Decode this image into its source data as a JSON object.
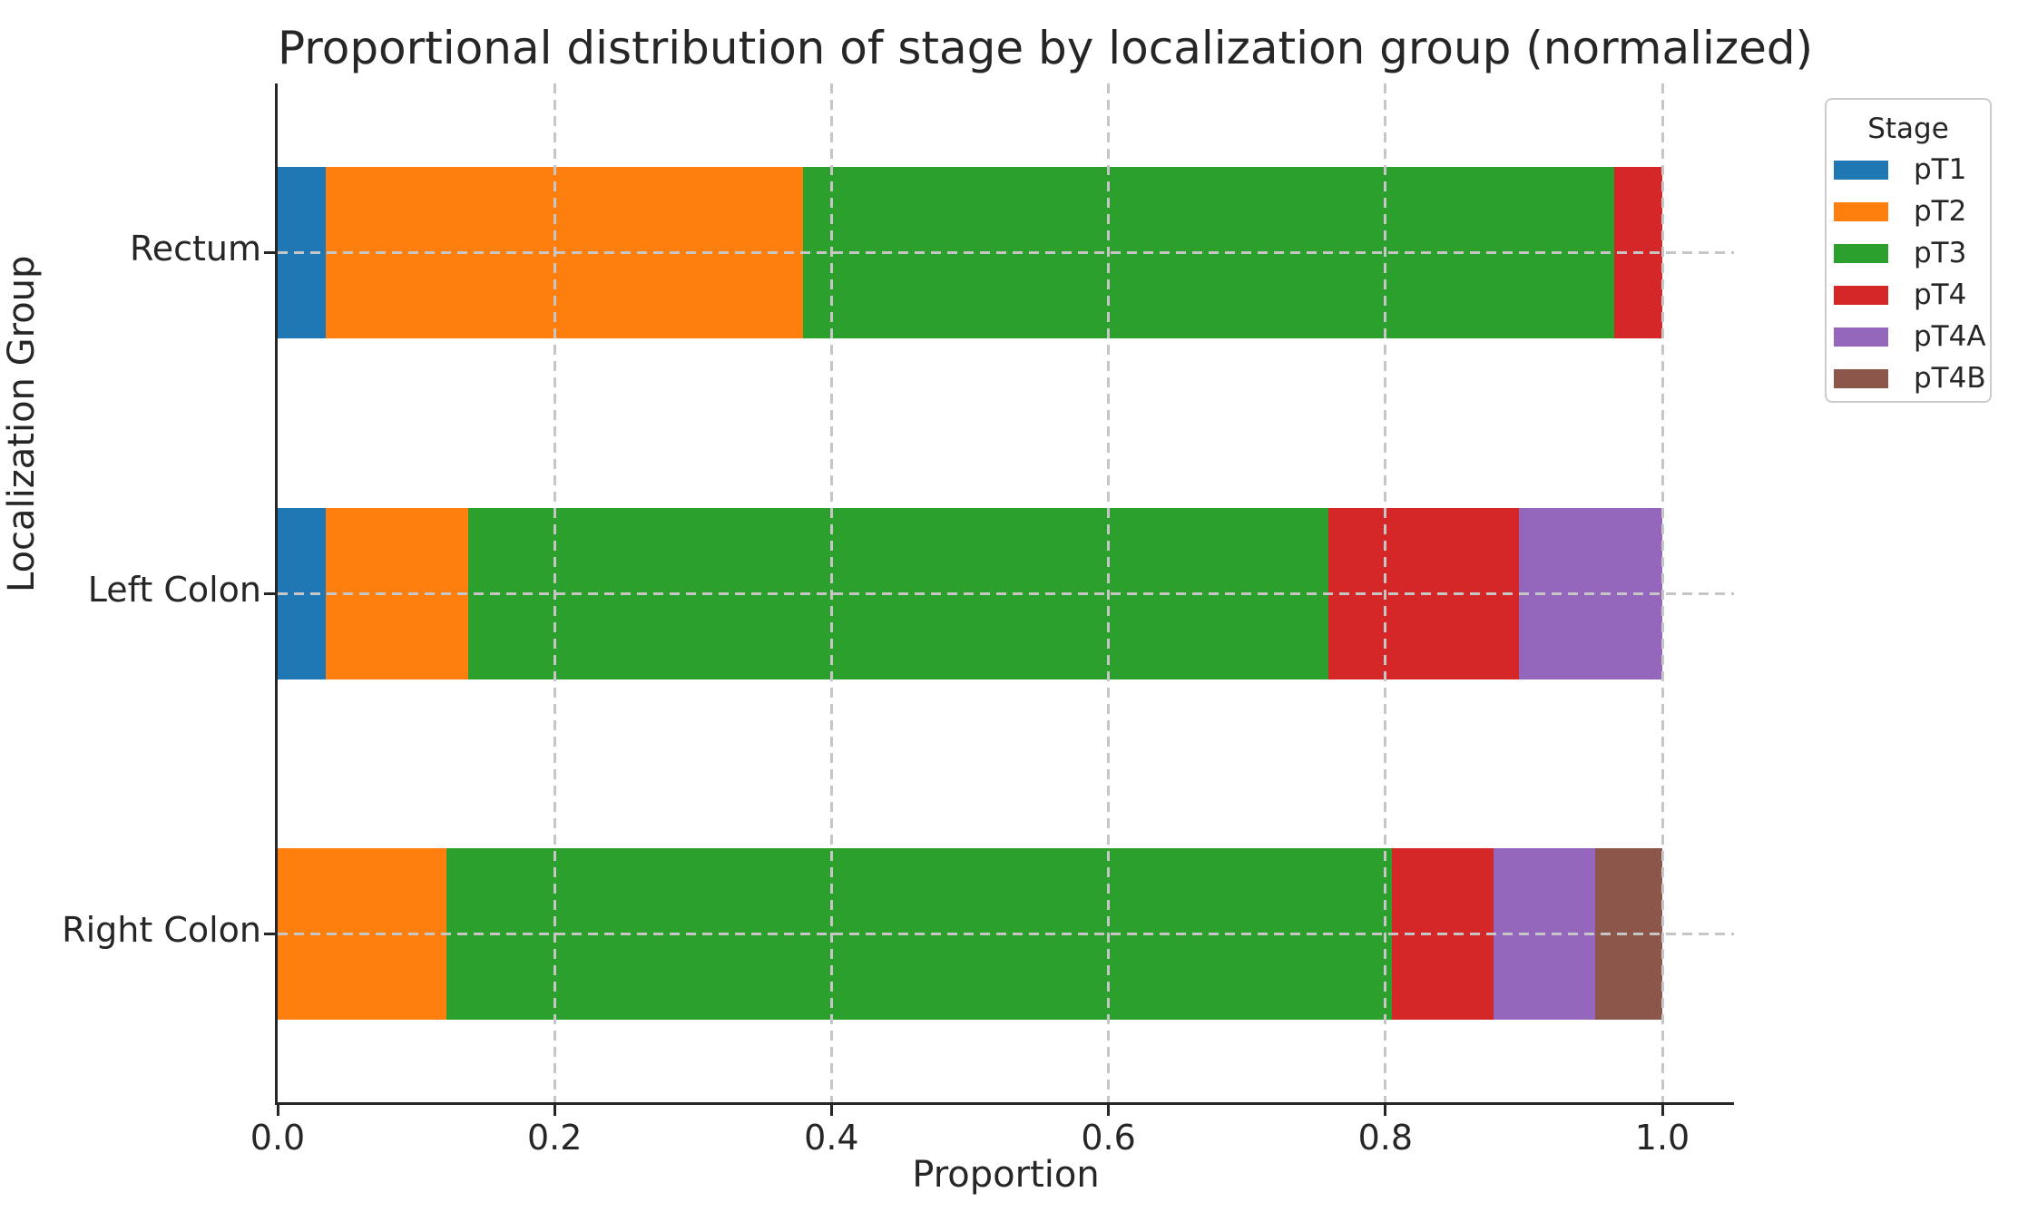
{
  "title": "Proportional distribution of stage by localization group (normalized)",
  "chart_data": {
    "type": "bar",
    "orientation": "horizontal",
    "stacked": true,
    "normalized": true,
    "title": "Proportional distribution of stage by localization group (normalized)",
    "xlabel": "Proportion",
    "ylabel": "Localization Group",
    "categories": [
      "Rectum",
      "Left Colon",
      "Right Colon"
    ],
    "series": [
      {
        "name": "pT1",
        "color": "#1f77b4",
        "values": [
          0.0345,
          0.0345,
          0.0
        ]
      },
      {
        "name": "pT2",
        "color": "#ff7f0e",
        "values": [
          0.3448,
          0.1034,
          0.122
        ]
      },
      {
        "name": "pT3",
        "color": "#2ca02c",
        "values": [
          0.5862,
          0.6207,
          0.6829
        ]
      },
      {
        "name": "pT4",
        "color": "#d62728",
        "values": [
          0.0345,
          0.1379,
          0.0732
        ]
      },
      {
        "name": "pT4A",
        "color": "#9467bd",
        "values": [
          0.0,
          0.1034,
          0.0732
        ]
      },
      {
        "name": "pT4B",
        "color": "#8c564b",
        "values": [
          0.0,
          0.0,
          0.0488
        ]
      }
    ],
    "x_ticks": [
      "0.0",
      "0.2",
      "0.4",
      "0.6",
      "0.8",
      "1.0"
    ],
    "x_tick_values": [
      0.0,
      0.2,
      0.4,
      0.6,
      0.8,
      1.0
    ],
    "xlim": [
      0.0,
      1.052
    ],
    "grid": {
      "style": "dashed",
      "color": "#c6c6c6"
    },
    "legend": {
      "title": "Stage",
      "position": "outside-upper-right"
    }
  }
}
